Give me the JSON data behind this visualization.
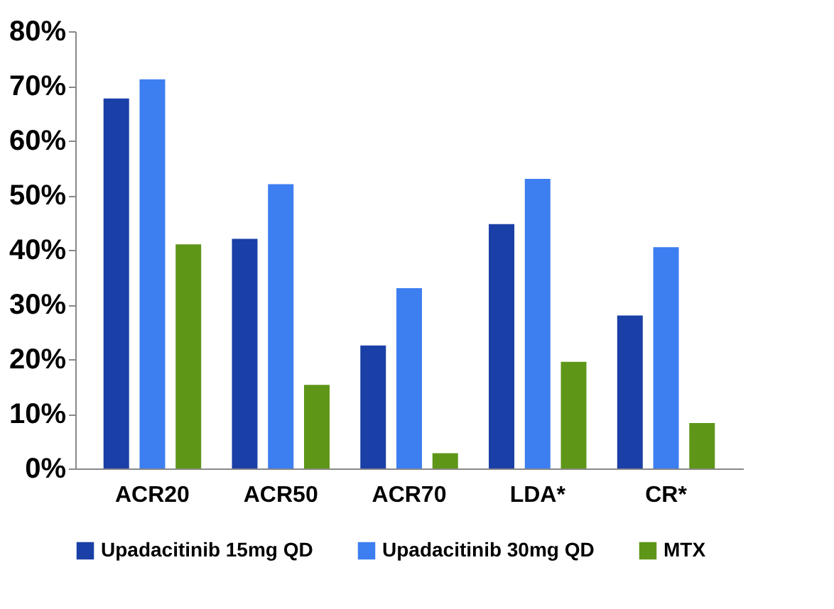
{
  "chart_data": {
    "type": "bar",
    "categories": [
      "ACR20",
      "ACR50",
      "ACR70",
      "LDA*",
      "CR*"
    ],
    "series": [
      {
        "name": "Upadacitinib 15mg QD",
        "color": "#1a3fa6",
        "values": [
          67.7,
          42,
          22.5,
          44.7,
          28
        ]
      },
      {
        "name": "Upadacitinib 30mg QD",
        "color": "#3d7ef0",
        "values": [
          71.2,
          52,
          33,
          53,
          40.5
        ]
      },
      {
        "name": "MTX",
        "color": "#5e9618",
        "values": [
          41,
          15.3,
          2.8,
          19.5,
          8.3
        ]
      }
    ],
    "ylim": [
      0,
      80
    ],
    "yticks": [
      {
        "value": 0,
        "label": "0%"
      },
      {
        "value": 10,
        "label": "10%"
      },
      {
        "value": 20,
        "label": "20%"
      },
      {
        "value": 30,
        "label": "30%"
      },
      {
        "value": 40,
        "label": "40%"
      },
      {
        "value": 50,
        "label": "50%"
      },
      {
        "value": 60,
        "label": "60%"
      },
      {
        "value": 70,
        "label": "70%"
      },
      {
        "value": 80,
        "label": "80%"
      }
    ],
    "grid": false,
    "legend": "bottom"
  }
}
